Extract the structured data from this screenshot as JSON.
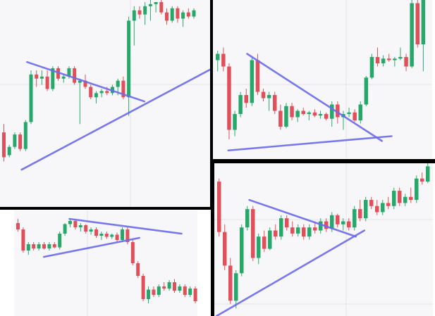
{
  "colors": {
    "up": "#27a86a",
    "down": "#e0505a",
    "trendline": "#6b6bea",
    "divider": "#000000",
    "panel_bg": "#f7f7f9",
    "grid": "#e3e3e8"
  },
  "chart_data": [
    {
      "type": "candlestick",
      "panel": "top-left",
      "pattern": "symmetrical-triangle-breakout-up",
      "grid": true,
      "ylim": [
        0,
        100
      ],
      "candles": [
        {
          "o": 36,
          "h": 40,
          "l": 22,
          "c": 24
        },
        {
          "o": 25,
          "h": 30,
          "l": 24,
          "c": 29
        },
        {
          "o": 29,
          "h": 36,
          "l": 28,
          "c": 35
        },
        {
          "o": 35,
          "h": 36,
          "l": 27,
          "c": 28
        },
        {
          "o": 28,
          "h": 42,
          "l": 27,
          "c": 41
        },
        {
          "o": 41,
          "h": 66,
          "l": 40,
          "c": 64
        },
        {
          "o": 64,
          "h": 66,
          "l": 58,
          "c": 62
        },
        {
          "o": 62,
          "h": 66,
          "l": 59,
          "c": 63
        },
        {
          "o": 63,
          "h": 66,
          "l": 56,
          "c": 57
        },
        {
          "o": 57,
          "h": 68,
          "l": 56,
          "c": 67
        },
        {
          "o": 67,
          "h": 68,
          "l": 61,
          "c": 62
        },
        {
          "o": 62,
          "h": 64,
          "l": 60,
          "c": 63
        },
        {
          "o": 63,
          "h": 68,
          "l": 62,
          "c": 67
        },
        {
          "o": 67,
          "h": 68,
          "l": 59,
          "c": 60
        },
        {
          "o": 60,
          "h": 62,
          "l": 40,
          "c": 61
        },
        {
          "o": 61,
          "h": 64,
          "l": 57,
          "c": 58
        },
        {
          "o": 58,
          "h": 59,
          "l": 52,
          "c": 53
        },
        {
          "o": 53,
          "h": 56,
          "l": 50,
          "c": 55
        },
        {
          "o": 55,
          "h": 57,
          "l": 53,
          "c": 56
        },
        {
          "o": 56,
          "h": 58,
          "l": 54,
          "c": 55
        },
        {
          "o": 55,
          "h": 59,
          "l": 54,
          "c": 58
        },
        {
          "o": 58,
          "h": 62,
          "l": 54,
          "c": 61
        },
        {
          "o": 61,
          "h": 63,
          "l": 52,
          "c": 53
        },
        {
          "o": 53,
          "h": 92,
          "l": 44,
          "c": 90
        },
        {
          "o": 90,
          "h": 97,
          "l": 78,
          "c": 95
        },
        {
          "o": 95,
          "h": 97,
          "l": 91,
          "c": 93
        },
        {
          "o": 93,
          "h": 99,
          "l": 88,
          "c": 97
        },
        {
          "o": 97,
          "h": 100,
          "l": 90,
          "c": 98
        },
        {
          "o": 98,
          "h": 99,
          "l": 94,
          "c": 99
        },
        {
          "o": 99,
          "h": 100,
          "l": 93,
          "c": 94
        },
        {
          "o": 94,
          "h": 96,
          "l": 88,
          "c": 90
        },
        {
          "o": 90,
          "h": 97,
          "l": 89,
          "c": 96
        },
        {
          "o": 96,
          "h": 97,
          "l": 89,
          "c": 91
        },
        {
          "o": 91,
          "h": 95,
          "l": 87,
          "c": 94
        },
        {
          "o": 94,
          "h": 96,
          "l": 91,
          "c": 92
        },
        {
          "o": 92,
          "h": 96,
          "l": 91,
          "c": 95
        }
      ],
      "trendlines": [
        {
          "from": [
            4.6,
            70
          ],
          "to": [
            26.2,
            51
          ]
        },
        {
          "from": [
            3.6,
            18
          ],
          "to": [
            40.2,
            69
          ]
        }
      ]
    },
    {
      "type": "candlestick",
      "panel": "top-right",
      "pattern": "descending-triangle-breakout-up",
      "grid": true,
      "ylim": [
        0,
        100
      ],
      "candles": [
        {
          "o": 62,
          "h": 68,
          "l": 55,
          "c": 66
        },
        {
          "o": 66,
          "h": 70,
          "l": 55,
          "c": 58
        },
        {
          "o": 58,
          "h": 60,
          "l": 12,
          "c": 18
        },
        {
          "o": 18,
          "h": 30,
          "l": 14,
          "c": 28
        },
        {
          "o": 28,
          "h": 42,
          "l": 26,
          "c": 40
        },
        {
          "o": 40,
          "h": 44,
          "l": 32,
          "c": 35
        },
        {
          "o": 35,
          "h": 64,
          "l": 33,
          "c": 62
        },
        {
          "o": 62,
          "h": 66,
          "l": 40,
          "c": 42
        },
        {
          "o": 42,
          "h": 44,
          "l": 36,
          "c": 38
        },
        {
          "o": 38,
          "h": 42,
          "l": 30,
          "c": 40
        },
        {
          "o": 40,
          "h": 42,
          "l": 28,
          "c": 30
        },
        {
          "o": 30,
          "h": 34,
          "l": 18,
          "c": 20
        },
        {
          "o": 20,
          "h": 35,
          "l": 19,
          "c": 33
        },
        {
          "o": 33,
          "h": 35,
          "l": 24,
          "c": 26
        },
        {
          "o": 26,
          "h": 31,
          "l": 23,
          "c": 30
        },
        {
          "o": 30,
          "h": 32,
          "l": 27,
          "c": 28
        },
        {
          "o": 28,
          "h": 30,
          "l": 24,
          "c": 29
        },
        {
          "o": 29,
          "h": 31,
          "l": 26,
          "c": 27
        },
        {
          "o": 27,
          "h": 30,
          "l": 25,
          "c": 28
        },
        {
          "o": 28,
          "h": 29,
          "l": 24,
          "c": 25
        },
        {
          "o": 25,
          "h": 36,
          "l": 20,
          "c": 34
        },
        {
          "o": 34,
          "h": 36,
          "l": 22,
          "c": 26
        },
        {
          "o": 26,
          "h": 30,
          "l": 18,
          "c": 28
        },
        {
          "o": 28,
          "h": 32,
          "l": 26,
          "c": 29
        },
        {
          "o": 29,
          "h": 31,
          "l": 23,
          "c": 24
        },
        {
          "o": 24,
          "h": 36,
          "l": 22,
          "c": 34
        },
        {
          "o": 34,
          "h": 52,
          "l": 33,
          "c": 51
        },
        {
          "o": 51,
          "h": 66,
          "l": 50,
          "c": 64
        },
        {
          "o": 64,
          "h": 70,
          "l": 58,
          "c": 60
        },
        {
          "o": 60,
          "h": 65,
          "l": 58,
          "c": 63
        },
        {
          "o": 63,
          "h": 66,
          "l": 61,
          "c": 62
        },
        {
          "o": 62,
          "h": 64,
          "l": 58,
          "c": 63
        },
        {
          "o": 63,
          "h": 70,
          "l": 62,
          "c": 64
        },
        {
          "o": 64,
          "h": 66,
          "l": 55,
          "c": 58
        },
        {
          "o": 58,
          "h": 100,
          "l": 57,
          "c": 98
        },
        {
          "o": 98,
          "h": 100,
          "l": 70,
          "c": 72
        },
        {
          "o": 72,
          "h": 100,
          "l": 55,
          "c": 100
        }
      ],
      "trendlines": [
        {
          "from": [
            5.5,
            66
          ],
          "to": [
            29.1,
            11
          ]
        },
        {
          "from": [
            2.2,
            5
          ],
          "to": [
            30.8,
            14
          ]
        }
      ]
    },
    {
      "type": "candlestick",
      "panel": "bottom-left",
      "pattern": "ascending-triangle-breakdown",
      "grid": true,
      "ylim": [
        0,
        100
      ],
      "candles": [
        {
          "o": 88,
          "h": 92,
          "l": 80,
          "c": 82
        },
        {
          "o": 82,
          "h": 84,
          "l": 60,
          "c": 62
        },
        {
          "o": 62,
          "h": 70,
          "l": 58,
          "c": 68
        },
        {
          "o": 68,
          "h": 70,
          "l": 62,
          "c": 64
        },
        {
          "o": 64,
          "h": 70,
          "l": 62,
          "c": 68
        },
        {
          "o": 68,
          "h": 70,
          "l": 63,
          "c": 64
        },
        {
          "o": 64,
          "h": 70,
          "l": 62,
          "c": 68
        },
        {
          "o": 68,
          "h": 70,
          "l": 64,
          "c": 65
        },
        {
          "o": 65,
          "h": 80,
          "l": 63,
          "c": 78
        },
        {
          "o": 78,
          "h": 88,
          "l": 76,
          "c": 87
        },
        {
          "o": 87,
          "h": 92,
          "l": 84,
          "c": 90
        },
        {
          "o": 90,
          "h": 92,
          "l": 82,
          "c": 84
        },
        {
          "o": 84,
          "h": 88,
          "l": 80,
          "c": 86
        },
        {
          "o": 86,
          "h": 87,
          "l": 78,
          "c": 80
        },
        {
          "o": 80,
          "h": 84,
          "l": 77,
          "c": 82
        },
        {
          "o": 82,
          "h": 84,
          "l": 74,
          "c": 76
        },
        {
          "o": 76,
          "h": 80,
          "l": 72,
          "c": 78
        },
        {
          "o": 78,
          "h": 80,
          "l": 73,
          "c": 75
        },
        {
          "o": 75,
          "h": 78,
          "l": 73,
          "c": 77
        },
        {
          "o": 77,
          "h": 79,
          "l": 70,
          "c": 72
        },
        {
          "o": 72,
          "h": 84,
          "l": 70,
          "c": 82
        },
        {
          "o": 82,
          "h": 84,
          "l": 68,
          "c": 70
        },
        {
          "o": 70,
          "h": 72,
          "l": 48,
          "c": 50
        },
        {
          "o": 50,
          "h": 52,
          "l": 36,
          "c": 38
        },
        {
          "o": 38,
          "h": 40,
          "l": 14,
          "c": 16
        },
        {
          "o": 16,
          "h": 28,
          "l": 12,
          "c": 25
        },
        {
          "o": 25,
          "h": 28,
          "l": 18,
          "c": 20
        },
        {
          "o": 20,
          "h": 30,
          "l": 18,
          "c": 28
        },
        {
          "o": 28,
          "h": 32,
          "l": 24,
          "c": 26
        },
        {
          "o": 26,
          "h": 34,
          "l": 24,
          "c": 32
        },
        {
          "o": 32,
          "h": 35,
          "l": 22,
          "c": 24
        },
        {
          "o": 24,
          "h": 30,
          "l": 22,
          "c": 28
        },
        {
          "o": 28,
          "h": 30,
          "l": 18,
          "c": 20
        },
        {
          "o": 20,
          "h": 28,
          "l": 18,
          "c": 26
        },
        {
          "o": 26,
          "h": 28,
          "l": 12,
          "c": 14
        },
        {
          "o": 14,
          "h": 20,
          "l": 4,
          "c": 6
        }
      ],
      "trendlines": [
        {
          "from": [
            10.2,
            92
          ],
          "to": [
            31.7,
            78
          ]
        },
        {
          "from": [
            5.3,
            56
          ],
          "to": [
            23.6,
            74
          ]
        }
      ]
    },
    {
      "type": "candlestick",
      "panel": "bottom-right",
      "pattern": "symmetrical-triangle-breakout-up",
      "grid": true,
      "ylim": [
        0,
        100
      ],
      "candles": [
        {
          "o": 88,
          "h": 90,
          "l": 52,
          "c": 55
        },
        {
          "o": 55,
          "h": 60,
          "l": 30,
          "c": 33
        },
        {
          "o": 33,
          "h": 38,
          "l": 8,
          "c": 10
        },
        {
          "o": 10,
          "h": 30,
          "l": 5,
          "c": 28
        },
        {
          "o": 28,
          "h": 60,
          "l": 26,
          "c": 58
        },
        {
          "o": 58,
          "h": 72,
          "l": 56,
          "c": 70
        },
        {
          "o": 70,
          "h": 72,
          "l": 36,
          "c": 38
        },
        {
          "o": 38,
          "h": 54,
          "l": 34,
          "c": 52
        },
        {
          "o": 52,
          "h": 56,
          "l": 42,
          "c": 44
        },
        {
          "o": 44,
          "h": 58,
          "l": 43,
          "c": 56
        },
        {
          "o": 56,
          "h": 60,
          "l": 50,
          "c": 52
        },
        {
          "o": 52,
          "h": 66,
          "l": 50,
          "c": 64
        },
        {
          "o": 64,
          "h": 66,
          "l": 56,
          "c": 58
        },
        {
          "o": 58,
          "h": 62,
          "l": 52,
          "c": 54
        },
        {
          "o": 54,
          "h": 60,
          "l": 52,
          "c": 58
        },
        {
          "o": 58,
          "h": 60,
          "l": 50,
          "c": 52
        },
        {
          "o": 52,
          "h": 60,
          "l": 50,
          "c": 58
        },
        {
          "o": 58,
          "h": 62,
          "l": 54,
          "c": 56
        },
        {
          "o": 56,
          "h": 64,
          "l": 54,
          "c": 62
        },
        {
          "o": 62,
          "h": 64,
          "l": 55,
          "c": 57
        },
        {
          "o": 57,
          "h": 68,
          "l": 55,
          "c": 66
        },
        {
          "o": 66,
          "h": 67,
          "l": 58,
          "c": 60
        },
        {
          "o": 60,
          "h": 64,
          "l": 56,
          "c": 62
        },
        {
          "o": 62,
          "h": 64,
          "l": 56,
          "c": 58
        },
        {
          "o": 58,
          "h": 72,
          "l": 56,
          "c": 70
        },
        {
          "o": 70,
          "h": 76,
          "l": 62,
          "c": 64
        },
        {
          "o": 64,
          "h": 78,
          "l": 62,
          "c": 76
        },
        {
          "o": 76,
          "h": 78,
          "l": 70,
          "c": 72
        },
        {
          "o": 72,
          "h": 76,
          "l": 66,
          "c": 68
        },
        {
          "o": 68,
          "h": 76,
          "l": 66,
          "c": 74
        },
        {
          "o": 74,
          "h": 78,
          "l": 70,
          "c": 72
        },
        {
          "o": 72,
          "h": 84,
          "l": 70,
          "c": 82
        },
        {
          "o": 82,
          "h": 84,
          "l": 72,
          "c": 74
        },
        {
          "o": 74,
          "h": 80,
          "l": 72,
          "c": 78
        },
        {
          "o": 78,
          "h": 84,
          "l": 74,
          "c": 76
        },
        {
          "o": 76,
          "h": 92,
          "l": 74,
          "c": 90
        },
        {
          "o": 90,
          "h": 94,
          "l": 86,
          "c": 88
        },
        {
          "o": 88,
          "h": 100,
          "l": 87,
          "c": 98
        }
      ],
      "trendlines": [
        {
          "from": [
            5.7,
            76
          ],
          "to": [
            24.6,
            52
          ]
        },
        {
          "from": [
            -0.1,
            0
          ],
          "to": [
            26.1,
            56
          ]
        }
      ]
    }
  ]
}
